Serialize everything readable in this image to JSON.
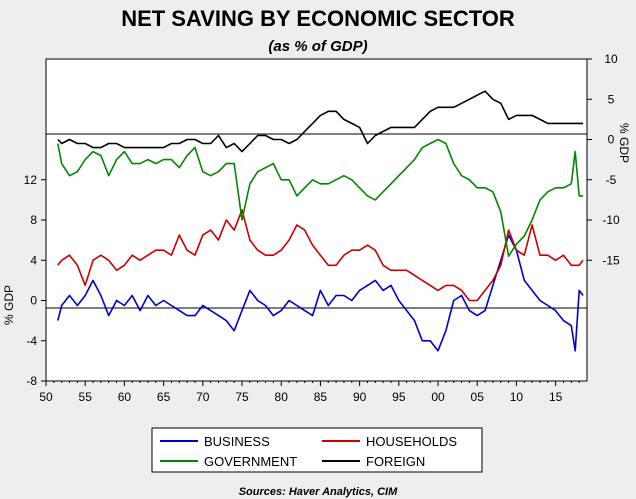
{
  "chart_data": {
    "type": "line",
    "title": "NET SAVING BY ECONOMIC SECTOR",
    "subtitle": "(as % of GDP)",
    "source": "Sources: Haver Analytics, CIM",
    "left_axis": {
      "label": "% GDP",
      "ylim": [
        -8,
        24
      ],
      "ticks": [
        -8,
        -4,
        0,
        4,
        8,
        12
      ],
      "tick_labels": [
        "-8",
        "-4",
        "0",
        "4",
        "8",
        "12"
      ]
    },
    "right_axis": {
      "label": "% GDP",
      "ylim": [
        -30,
        10
      ],
      "ticks": [
        -15,
        -10,
        -5,
        0,
        5,
        10
      ],
      "tick_labels": [
        "-15",
        "-10",
        "-5",
        "0",
        "5",
        "10"
      ]
    },
    "x_axis": {
      "xlim": [
        1950,
        2019
      ],
      "ticks": [
        1950,
        1955,
        1960,
        1965,
        1970,
        1975,
        1980,
        1985,
        1990,
        1995,
        2000,
        2005,
        2010,
        2015
      ],
      "tick_labels": [
        "50",
        "55",
        "60",
        "65",
        "70",
        "75",
        "80",
        "85",
        "90",
        "95",
        "00",
        "05",
        "10",
        "15"
      ]
    },
    "zero_lines": [
      "left",
      "right"
    ],
    "grid": false,
    "legend": "bottom",
    "series": [
      {
        "name": "BUSINESS",
        "axis": "left",
        "color": "#0000cc",
        "x": [
          1951.5,
          1952,
          1953,
          1954,
          1955,
          1956,
          1957,
          1958,
          1959,
          1960,
          1961,
          1962,
          1963,
          1964,
          1965,
          1966,
          1967,
          1968,
          1969,
          1970,
          1971,
          1972,
          1973,
          1974,
          1975,
          1976,
          1977,
          1978,
          1979,
          1980,
          1981,
          1982,
          1983,
          1984,
          1985,
          1986,
          1987,
          1988,
          1989,
          1990,
          1991,
          1992,
          1993,
          1994,
          1995,
          1996,
          1997,
          1998,
          1999,
          2000,
          2001,
          2002,
          2003,
          2004,
          2005,
          2006,
          2007,
          2008,
          2009,
          2010,
          2011,
          2012,
          2013,
          2014,
          2015,
          2016,
          2017,
          2017.5,
          2018,
          2018.5
        ],
        "values": [
          -2,
          -0.5,
          0.5,
          -0.5,
          0.5,
          2,
          0.5,
          -1.5,
          0,
          -0.5,
          0.5,
          -1,
          0.5,
          -0.5,
          0,
          -0.5,
          -1,
          -1.5,
          -1.5,
          -0.5,
          -1,
          -1.5,
          -2,
          -3,
          -1,
          1,
          0,
          -0.5,
          -1.5,
          -1,
          0,
          -0.5,
          -1,
          -1.5,
          1,
          -0.5,
          0.5,
          0.5,
          0,
          1,
          1.5,
          2,
          1,
          1.5,
          0,
          -1,
          -2,
          -4,
          -4,
          -5,
          -3,
          0,
          0.5,
          -1,
          -1.5,
          -1,
          1.5,
          4,
          6.5,
          5,
          2,
          1,
          0,
          -0.5,
          -1,
          -2,
          -2.5,
          -5,
          1,
          0.5
        ]
      },
      {
        "name": "HOUSEHOLDS",
        "axis": "left",
        "color": "#cc0000",
        "x": [
          1951.5,
          1952,
          1953,
          1954,
          1955,
          1956,
          1957,
          1958,
          1959,
          1960,
          1961,
          1962,
          1963,
          1964,
          1965,
          1966,
          1967,
          1968,
          1969,
          1970,
          1971,
          1972,
          1973,
          1974,
          1975,
          1976,
          1977,
          1978,
          1979,
          1980,
          1981,
          1982,
          1983,
          1984,
          1985,
          1986,
          1987,
          1988,
          1989,
          1990,
          1991,
          1992,
          1993,
          1994,
          1995,
          1996,
          1997,
          1998,
          1999,
          2000,
          2001,
          2002,
          2003,
          2004,
          2005,
          2006,
          2007,
          2008,
          2009,
          2010,
          2011,
          2012,
          2013,
          2014,
          2015,
          2016,
          2017,
          2018,
          2018.5
        ],
        "values": [
          3.5,
          4,
          4.5,
          3.5,
          1.5,
          4,
          4.5,
          4,
          3,
          3.5,
          4.5,
          4,
          4.5,
          5,
          5,
          4.5,
          6.5,
          5,
          4.5,
          6.5,
          7,
          6,
          8,
          7,
          9,
          6,
          5,
          4.5,
          4.5,
          5,
          6,
          7.5,
          7,
          5.5,
          4.5,
          3.5,
          3.5,
          4.5,
          5,
          5,
          5.5,
          5,
          3.5,
          3,
          3,
          3,
          2.5,
          2,
          1.5,
          1,
          1.5,
          1.5,
          1,
          0,
          0,
          1,
          2,
          3.5,
          7,
          5,
          4.5,
          7.5,
          4.5,
          4.5,
          4,
          4.5,
          3.5,
          3.5,
          4
        ]
      },
      {
        "name": "GOVERNMENT",
        "axis": "right",
        "color": "#008800",
        "x": [
          1951.5,
          1952,
          1953,
          1954,
          1955,
          1956,
          1957,
          1958,
          1959,
          1960,
          1961,
          1962,
          1963,
          1964,
          1965,
          1966,
          1967,
          1968,
          1969,
          1970,
          1971,
          1972,
          1973,
          1974,
          1975,
          1976,
          1977,
          1978,
          1979,
          1980,
          1981,
          1982,
          1983,
          1984,
          1985,
          1986,
          1987,
          1988,
          1989,
          1990,
          1991,
          1992,
          1993,
          1994,
          1995,
          1996,
          1997,
          1998,
          1999,
          2000,
          2001,
          2002,
          2003,
          2004,
          2005,
          2006,
          2007,
          2008,
          2009,
          2010,
          2011,
          2012,
          2013,
          2014,
          2015,
          2016,
          2017,
          2017.5,
          2018,
          2018.5
        ],
        "values": [
          -0.5,
          -3,
          -4.5,
          -4,
          -2.5,
          -1.5,
          -2,
          -4.5,
          -2.5,
          -1.5,
          -3,
          -3,
          -2.5,
          -3,
          -2.5,
          -2.5,
          -3.5,
          -2,
          -1,
          -4,
          -4.5,
          -4,
          -3,
          -3,
          -10,
          -5.5,
          -4,
          -3.5,
          -3,
          -5,
          -5,
          -7,
          -6,
          -5,
          -5.5,
          -5.5,
          -5,
          -4.5,
          -5,
          -6,
          -7,
          -7.5,
          -6.5,
          -5.5,
          -4.5,
          -3.5,
          -2.5,
          -1,
          -0.5,
          0,
          -0.5,
          -3,
          -4.5,
          -5,
          -6,
          -6,
          -6.5,
          -9,
          -14.5,
          -13,
          -12,
          -10,
          -7.5,
          -6.5,
          -6,
          -6,
          -5.5,
          -1.5,
          -7,
          -7
        ]
      },
      {
        "name": "FOREIGN",
        "axis": "right",
        "color": "#000000",
        "x": [
          1951.5,
          1952,
          1953,
          1954,
          1955,
          1956,
          1957,
          1958,
          1959,
          1960,
          1961,
          1962,
          1963,
          1964,
          1965,
          1966,
          1967,
          1968,
          1969,
          1970,
          1971,
          1972,
          1973,
          1974,
          1975,
          1976,
          1977,
          1978,
          1979,
          1980,
          1981,
          1982,
          1983,
          1984,
          1985,
          1986,
          1987,
          1988,
          1989,
          1990,
          1991,
          1992,
          1993,
          1994,
          1995,
          1996,
          1997,
          1998,
          1999,
          2000,
          2001,
          2002,
          2003,
          2004,
          2005,
          2006,
          2007,
          2008,
          2009,
          2010,
          2011,
          2012,
          2013,
          2014,
          2015,
          2016,
          2017,
          2018,
          2018.5
        ],
        "values": [
          0,
          -0.5,
          0,
          -0.5,
          -0.5,
          -1,
          -1,
          -0.5,
          -0.5,
          -1,
          -1,
          -1,
          -1,
          -1,
          -1,
          -0.5,
          -0.5,
          0,
          0,
          -0.5,
          -0.5,
          0.5,
          -1,
          -0.5,
          -1.5,
          -0.5,
          0.5,
          0.5,
          0,
          0,
          -0.5,
          0,
          1,
          2,
          3,
          3.5,
          3.5,
          2.5,
          2,
          1.5,
          -0.5,
          0.5,
          1,
          1.5,
          1.5,
          1.5,
          1.5,
          2.5,
          3.5,
          4,
          4,
          4,
          4.5,
          5,
          5.5,
          6,
          5,
          4.5,
          2.5,
          3,
          3,
          3,
          2.5,
          2,
          2,
          2,
          2,
          2,
          2
        ]
      }
    ]
  }
}
